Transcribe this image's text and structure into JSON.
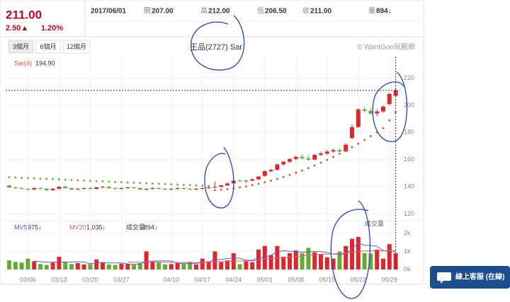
{
  "quote": {
    "price": "211.00",
    "change": "2.50▲",
    "change_pct": "1.20%",
    "date": "2017/06/01",
    "open_label": "開",
    "open": "207.00",
    "high_label": "高",
    "high": "212.00",
    "low_label": "低",
    "low": "206.50",
    "close_label": "收",
    "close": "211.00",
    "volume_label": "量",
    "volume": "894↓"
  },
  "tabs": [
    "3個月",
    "6個月",
    "12個月"
  ],
  "watermark": "© WantGoo玩股網",
  "chat_button": "線上客服 (在線)",
  "chart_data": {
    "type": "candlestick",
    "title": "王品(2727) Sar",
    "categories": [
      null,
      null,
      null,
      "03/06",
      null,
      null,
      null,
      null,
      "03/13",
      null,
      null,
      null,
      null,
      "03/20",
      null,
      null,
      null,
      null,
      "03/27",
      null,
      null,
      null,
      null,
      null,
      null,
      null,
      "04/10",
      null,
      null,
      null,
      null,
      "04/17",
      null,
      null,
      null,
      null,
      "04/24",
      null,
      null,
      null,
      null,
      "05/01",
      null,
      null,
      null,
      null,
      "05/08",
      null,
      null,
      null,
      null,
      "05/15",
      null,
      null,
      null,
      null,
      "05/22",
      null,
      null,
      null,
      null,
      "05/29",
      null
    ],
    "open": [
      141,
      139.5,
      139,
      138.5,
      138,
      139,
      138.5,
      137.5,
      138.5,
      140,
      139,
      138,
      138.5,
      139,
      138.5,
      139.5,
      140,
      139,
      138.5,
      139,
      139.5,
      139,
      138,
      138.5,
      139,
      138.5,
      138,
      138.5,
      139,
      138.5,
      138,
      138.5,
      139,
      139.5,
      140,
      141,
      142.5,
      144.5,
      144,
      144.5,
      145.5,
      148,
      151.5,
      152.5,
      156.5,
      158.5,
      160.5,
      162,
      161,
      160,
      163.5,
      164.5,
      166,
      167,
      166,
      176,
      184,
      197,
      196,
      194,
      195.5,
      201,
      207
    ],
    "high": [
      141.5,
      140,
      139.5,
      139,
      139.5,
      139.5,
      139,
      139,
      140.5,
      141,
      139.5,
      139,
      139.5,
      140,
      140,
      140.5,
      140.5,
      139.5,
      139.5,
      140,
      140,
      139.5,
      139,
      139.5,
      139.5,
      139,
      139,
      139.5,
      139.5,
      139,
      139,
      139.5,
      140,
      144,
      141.5,
      143,
      145,
      145.5,
      145,
      146,
      148,
      152,
      153,
      157,
      159,
      161,
      163,
      164,
      163,
      164,
      166,
      167,
      168,
      168.5,
      172,
      186,
      198,
      199,
      198,
      197,
      200,
      209,
      212
    ],
    "low": [
      139,
      138.5,
      138,
      137.5,
      137.5,
      138,
      137,
      137,
      138,
      138.5,
      137.5,
      137.5,
      138,
      138,
      138,
      139,
      138.5,
      138,
      138,
      138.5,
      138.5,
      137.5,
      137.5,
      138,
      138,
      137.5,
      137.5,
      138,
      138,
      137.5,
      137.5,
      138,
      138.5,
      139,
      139.5,
      140.5,
      142,
      143.5,
      143,
      144,
      145,
      147.5,
      150.5,
      152,
      155.5,
      157.5,
      159.5,
      160,
      159,
      159.5,
      162.5,
      163.5,
      165,
      165.5,
      165.5,
      175,
      183.5,
      195,
      193,
      192,
      194.5,
      200,
      206.5
    ],
    "close": [
      139.5,
      139,
      138.5,
      138,
      139,
      138.5,
      137.5,
      138.5,
      140,
      139,
      138,
      138.5,
      139,
      138.5,
      139.5,
      140,
      139,
      138.5,
      139,
      139.5,
      139,
      138,
      138.5,
      139,
      138.5,
      138,
      138.5,
      139,
      138.5,
      138,
      138.5,
      139,
      139.5,
      140,
      141,
      142.5,
      144.5,
      144,
      144.5,
      145.5,
      147.5,
      151.5,
      152.5,
      156.5,
      158.5,
      160.5,
      162,
      161,
      160,
      163.5,
      164.5,
      166,
      167,
      166,
      171,
      184,
      197,
      196,
      194,
      195.5,
      199,
      208.5,
      211
    ],
    "up_color": "#e0262b",
    "down_color": "#62ad2f",
    "sar": {
      "name": "Sar(4)",
      "last_label": "194.90",
      "color": "#e8453c",
      "values": [
        147,
        146.8,
        146.6,
        146.4,
        146.2,
        146,
        145.8,
        145.6,
        145.4,
        145.2,
        145,
        144.8,
        144.6,
        144.4,
        144.2,
        144,
        143.8,
        143.6,
        143.4,
        143.2,
        143,
        142.8,
        142.6,
        142.4,
        142.2,
        142,
        141.8,
        141.6,
        141.4,
        141.2,
        141,
        140.8,
        140.6,
        137.5,
        137.8,
        138.2,
        138.8,
        139.5,
        140.3,
        141.2,
        142.2,
        143.3,
        144.5,
        145.8,
        147.2,
        148.7,
        150.3,
        152,
        153.8,
        155.7,
        157.7,
        159.8,
        162,
        164.3,
        166.7,
        169.2,
        171.8,
        174.5,
        177.3,
        180.2,
        183.2,
        189,
        194.9
      ]
    },
    "ylim": [
      115,
      236
    ],
    "yticks": [
      120,
      140,
      160,
      180,
      200,
      220
    ],
    "grid": true,
    "volume": {
      "title": "成交量",
      "last_label": "894↓",
      "values": [
        500,
        420,
        380,
        600,
        450,
        300,
        250,
        380,
        700,
        420,
        300,
        350,
        280,
        300,
        550,
        400,
        280,
        250,
        320,
        300,
        260,
        350,
        1000,
        400,
        380,
        280,
        300,
        350,
        300,
        420,
        280,
        600,
        450,
        1000,
        400,
        500,
        900,
        300,
        450,
        400,
        1100,
        1300,
        800,
        1300,
        700,
        900,
        1050,
        900,
        1200,
        950,
        850,
        675,
        600,
        1000,
        1300,
        1700,
        1800,
        900,
        881,
        1100,
        600,
        1400,
        894
      ],
      "ylim": [
        0,
        2700
      ],
      "yticks": [
        {
          "value": 0,
          "label": "0k"
        },
        {
          "value": 1000,
          "label": "1k"
        },
        {
          "value": 2000,
          "label": "2k"
        }
      ],
      "mv5": {
        "name": "MV5",
        "last_label": "975↓",
        "color": "#4a63d8",
        "values": [
          null,
          null,
          null,
          null,
          470,
          430,
          400,
          400,
          420,
          410,
          410,
          430,
          410,
          330,
          360,
          380,
          360,
          360,
          360,
          310,
          280,
          300,
          440,
          460,
          480,
          480,
          470,
          340,
          320,
          330,
          330,
          390,
          410,
          550,
          550,
          610,
          650,
          620,
          510,
          510,
          630,
          690,
          790,
          980,
          1040,
          1000,
          950,
          970,
          950,
          1000,
          990,
          930,
          850,
          830,
          870,
          1120,
          1480,
          1340,
          1320,
          1280,
          1050,
          980,
          975
        ]
      },
      "mv20": {
        "name": "MV20",
        "last_label": "1,035↓",
        "color": "#e0605a",
        "values": [
          null,
          null,
          null,
          null,
          null,
          null,
          null,
          null,
          null,
          null,
          null,
          null,
          null,
          null,
          null,
          null,
          null,
          null,
          null,
          410,
          400,
          400,
          420,
          420,
          410,
          400,
          400,
          380,
          380,
          390,
          380,
          390,
          400,
          430,
          430,
          440,
          470,
          470,
          480,
          480,
          520,
          570,
          590,
          630,
          650,
          680,
          720,
          750,
          790,
          820,
          840,
          850,
          860,
          880,
          900,
          960,
          1000,
          1020,
          1030,
          1040,
          1030,
          1040,
          1035
        ]
      }
    }
  }
}
